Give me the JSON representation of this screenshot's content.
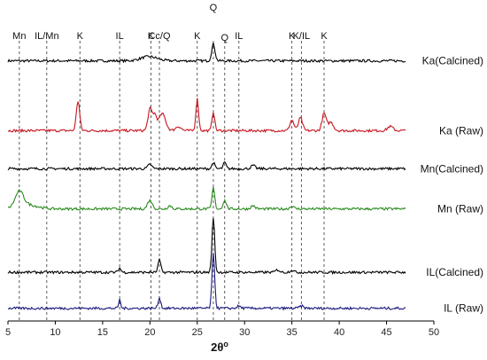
{
  "chart_data": {
    "type": "line",
    "title": "",
    "xlabel": "2θ",
    "xlabel_superscript": "o",
    "ylabel": "",
    "xlim": [
      5,
      50
    ],
    "x_ticks": [
      "5",
      "10",
      "15",
      "20",
      "25",
      "30",
      "35",
      "40",
      "45",
      "50"
    ],
    "x_ticks_values": [
      5,
      10,
      15,
      20,
      25,
      30,
      35,
      40,
      45,
      50
    ],
    "grid": false,
    "legend": "labels at right end of each trace",
    "reference_lines": [
      {
        "label": "Mn",
        "x": 6.2
      },
      {
        "label": "IL/Mn",
        "x": 9.1
      },
      {
        "label": "K",
        "x": 12.6
      },
      {
        "label": "IL",
        "x": 16.8
      },
      {
        "label": "K",
        "x": 20.1
      },
      {
        "label": "Cc/Q",
        "x": 21.0
      },
      {
        "label": "K",
        "x": 25.0
      },
      {
        "label": "Q",
        "x": 26.7
      },
      {
        "label": "Q",
        "x": 27.9
      },
      {
        "label": "IL",
        "x": 29.4
      },
      {
        "label": "K",
        "x": 35.0
      },
      {
        "label": "K/IL",
        "x": 36.0
      },
      {
        "label": "K",
        "x": 38.4
      }
    ],
    "series": [
      {
        "name": "Ka(Calcined)",
        "color": "#000000",
        "baseline": 0.93,
        "noise": 0.006,
        "peaks": [
          [
            19.9,
            0.02,
            1.2
          ],
          [
            26.7,
            0.08,
            0.25
          ]
        ]
      },
      {
        "name": "Ka (Raw)",
        "color": "#c8141e",
        "baseline": 0.6,
        "noise": 0.006,
        "peaks": [
          [
            12.4,
            0.14,
            0.25
          ],
          [
            20.0,
            0.1,
            0.3
          ],
          [
            20.5,
            0.07,
            0.3
          ],
          [
            21.3,
            0.08,
            0.5
          ],
          [
            23.0,
            0.02,
            0.4
          ],
          [
            25.0,
            0.15,
            0.2
          ],
          [
            26.7,
            0.09,
            0.2
          ],
          [
            35.0,
            0.05,
            0.3
          ],
          [
            35.9,
            0.06,
            0.3
          ],
          [
            38.4,
            0.08,
            0.3
          ],
          [
            39.1,
            0.04,
            0.4
          ],
          [
            45.4,
            0.02,
            0.4
          ]
        ]
      },
      {
        "name": "Mn(Calcined)",
        "color": "#000000",
        "baseline": 0.42,
        "noise": 0.006,
        "peaks": [
          [
            20.0,
            0.02,
            0.3
          ],
          [
            26.7,
            0.03,
            0.2
          ],
          [
            27.9,
            0.03,
            0.2
          ],
          [
            30.9,
            0.015,
            0.3
          ]
        ]
      },
      {
        "name": "Mn (Raw)",
        "color": "#2a8a1e",
        "baseline": 0.23,
        "noise": 0.006,
        "peaks": [
          [
            6.2,
            0.07,
            0.6
          ],
          [
            7.0,
            0.02,
            1.5
          ],
          [
            20.0,
            0.04,
            0.35
          ],
          [
            22.1,
            0.015,
            0.3
          ],
          [
            26.7,
            0.1,
            0.2
          ],
          [
            27.9,
            0.04,
            0.25
          ],
          [
            30.9,
            0.015,
            0.3
          ],
          [
            35.0,
            0.012,
            0.3
          ]
        ]
      },
      {
        "name": "IL(Calcined)",
        "color": "#000000",
        "baseline": -0.07,
        "noise": 0.006,
        "peaks": [
          [
            16.8,
            0.02,
            0.2
          ],
          [
            21.0,
            0.06,
            0.2
          ],
          [
            26.7,
            0.26,
            0.2
          ],
          [
            33.5,
            0.012,
            0.3
          ],
          [
            35.0,
            0.01,
            0.3
          ]
        ]
      },
      {
        "name": "IL (Raw)",
        "color": "#1a1a7e",
        "baseline": -0.24,
        "noise": 0.006,
        "peaks": [
          [
            16.8,
            0.04,
            0.15
          ],
          [
            21.0,
            0.05,
            0.2
          ],
          [
            26.7,
            0.26,
            0.2
          ],
          [
            29.4,
            0.01,
            0.3
          ],
          [
            36.0,
            0.01,
            0.3
          ]
        ]
      }
    ]
  }
}
